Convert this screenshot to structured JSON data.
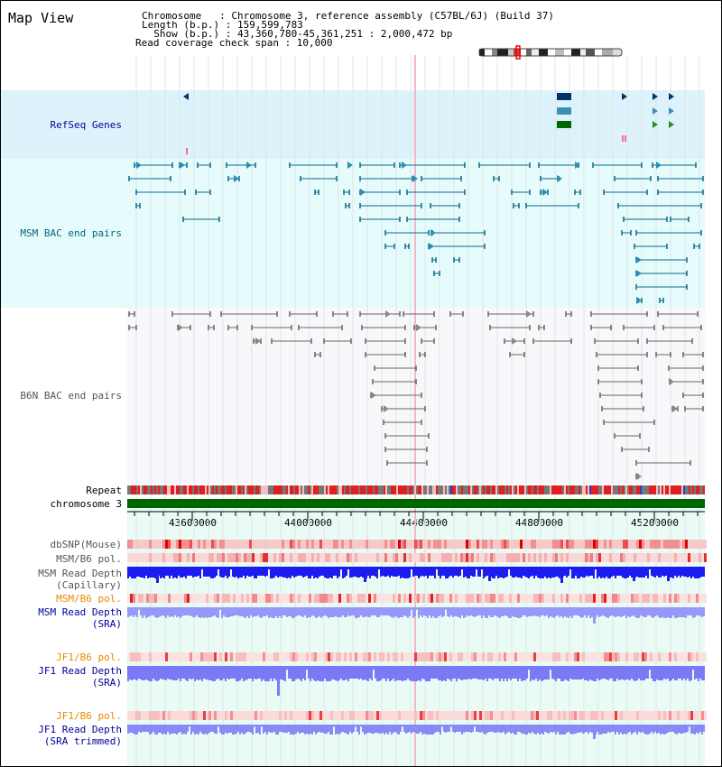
{
  "panel_title": "Map View",
  "info": {
    "line1": "Chromosome   : Chromosome 3, reference assembly (C57BL/6J) (Build 37)",
    "line2": "Length (b.p.) : 159,599,783",
    "line3": "  Show (b.p.) : 43,360,780-45,361,251 : 2,000,472 bp",
    "line4": "Read coverage check span : 10,000"
  },
  "tracks": {
    "refseq": "RefSeq Genes",
    "msm_bac": "MSM BAC end pairs",
    "b6n_bac": "B6N BAC end pairs",
    "repeat": "Repeat",
    "chromosome": "chromosome 3",
    "dbsnp": "dbSNP(Mouse)",
    "msm_b6_pol_1": "MSM/B6 pol.",
    "msm_read_depth_cap_1": "MSM Read Depth",
    "msm_read_depth_cap_2": "(Capillary)",
    "msm_b6_pol_2": "MSM/B6 pol.",
    "msm_read_depth_sra_1": "MSM Read Depth",
    "msm_read_depth_sra_2": "(SRA)",
    "jf1_b6_pol_1": "JF1/B6 pol.",
    "jf1_read_depth_sra_1": "JF1 Read Depth",
    "jf1_read_depth_sra_2": "(SRA)",
    "jf1_b6_pol_2": "JF1/B6 pol.",
    "jf1_read_depth_trim_1": "JF1 Read Depth",
    "jf1_read_depth_trim_2": "(SRA trimmed)"
  },
  "axis_ticks": [
    "43600000",
    "44000000",
    "44400000",
    "44800000",
    "45200000"
  ],
  "colors": {
    "refseq_bg": "#ddf3fb",
    "bac_bg": "#e6fbfb",
    "gene_label": "#000099",
    "msm_label": "#006680",
    "gray_label": "#555555",
    "orange_label": "#e68a00",
    "blue_label": "#000099"
  }
}
